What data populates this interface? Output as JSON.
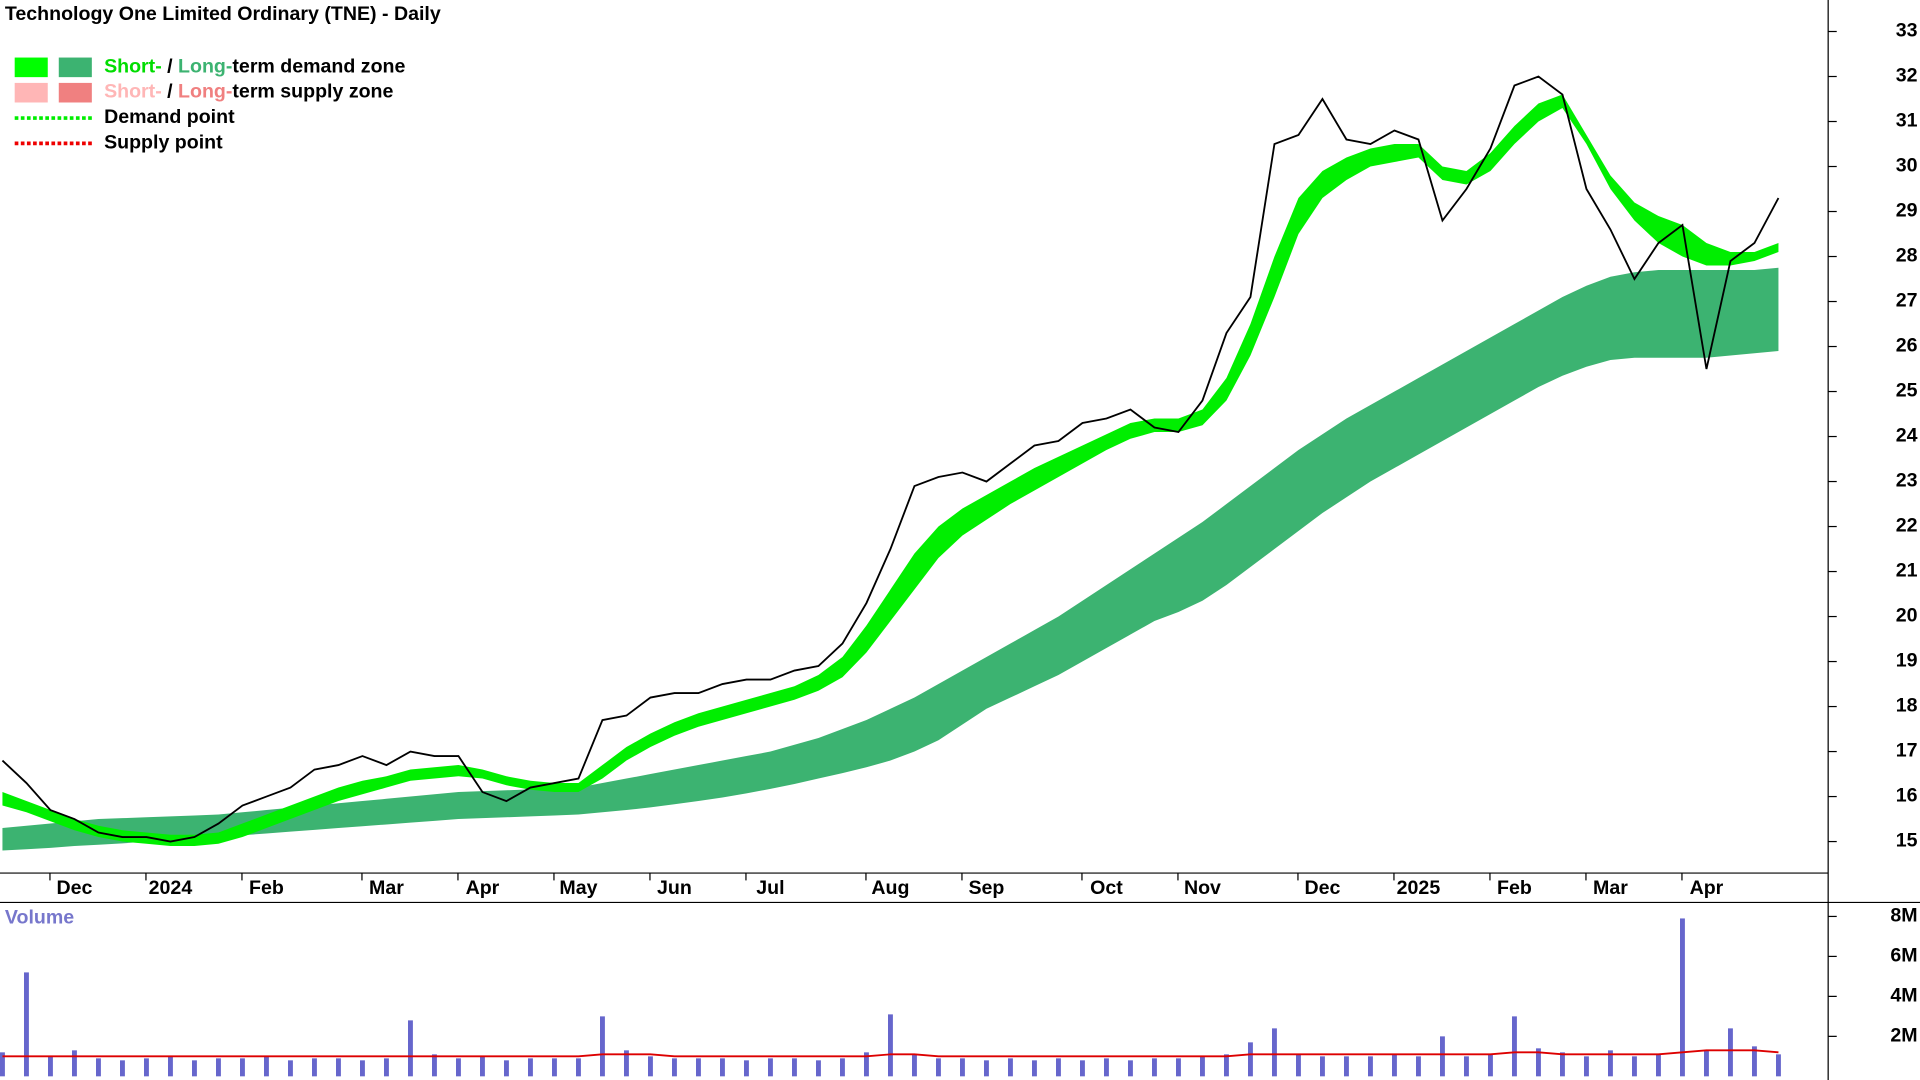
{
  "chart_data": [
    {
      "type": "line",
      "title": "Technology One Limited Ordinary (TNE) - Daily",
      "categories": [
        null,
        null,
        null,
        "Dec",
        null,
        null,
        null,
        "2024",
        null,
        null,
        null,
        "Feb",
        null,
        null,
        null,
        null,
        "Mar",
        null,
        null,
        null,
        "Apr",
        null,
        null,
        null,
        "May",
        null,
        null,
        null,
        "Jun",
        null,
        null,
        null,
        "Jul",
        null,
        null,
        null,
        null,
        "Aug",
        null,
        null,
        null,
        "Sep",
        null,
        null,
        null,
        null,
        "Oct",
        null,
        null,
        null,
        "Nov",
        null,
        null,
        null,
        null,
        "Dec",
        null,
        null,
        null,
        "2025",
        null,
        null,
        null,
        "Feb",
        null,
        null,
        null,
        "Mar",
        null,
        null,
        null,
        "Apr",
        null,
        null,
        null
      ],
      "series": [
        {
          "color": "#000000",
          "values": [
            16.8,
            16.3,
            15.7,
            15.5,
            15.2,
            15.1,
            15.1,
            15.0,
            15.1,
            15.4,
            15.8,
            16.0,
            16.2,
            16.6,
            16.7,
            16.9,
            16.7,
            17.0,
            16.9,
            16.9,
            16.1,
            15.9,
            16.2,
            16.3,
            16.4,
            17.7,
            17.8,
            18.2,
            18.3,
            18.3,
            18.5,
            18.6,
            18.6,
            18.8,
            18.9,
            19.4,
            20.3,
            21.5,
            22.9,
            23.1,
            23.2,
            23.0,
            23.4,
            23.8,
            23.9,
            24.3,
            24.4,
            24.6,
            24.2,
            24.1,
            24.8,
            26.3,
            27.1,
            30.5,
            30.7,
            31.5,
            30.6,
            30.5,
            30.8,
            30.6,
            28.8,
            29.5,
            30.4,
            31.8,
            32.0,
            31.6,
            29.5,
            28.6,
            27.5,
            28.3,
            28.7,
            25.5,
            27.9,
            28.3,
            29.3
          ]
        }
      ],
      "zones": [
        {
          "color": "#3cb371",
          "upper": [
            15.3,
            15.35,
            15.4,
            15.45,
            15.5,
            15.52,
            15.54,
            15.56,
            15.58,
            15.6,
            15.65,
            15.7,
            15.75,
            15.8,
            15.85,
            15.9,
            15.95,
            16.0,
            16.05,
            16.1,
            16.12,
            16.14,
            16.16,
            16.18,
            16.2,
            16.3,
            16.4,
            16.5,
            16.6,
            16.7,
            16.8,
            16.9,
            17.0,
            17.15,
            17.3,
            17.5,
            17.7,
            17.95,
            18.2,
            18.5,
            18.8,
            19.1,
            19.4,
            19.7,
            20.0,
            20.35,
            20.7,
            21.05,
            21.4,
            21.75,
            22.1,
            22.5,
            22.9,
            23.3,
            23.7,
            24.05,
            24.4,
            24.7,
            25.0,
            25.3,
            25.6,
            25.9,
            26.2,
            26.5,
            26.8,
            27.1,
            27.35,
            27.55,
            27.65,
            27.7,
            27.7,
            27.7,
            27.7,
            27.7,
            27.75
          ],
          "lower": [
            14.8,
            14.83,
            14.86,
            14.9,
            14.93,
            14.96,
            15.0,
            15.03,
            15.06,
            15.1,
            15.14,
            15.18,
            15.22,
            15.26,
            15.3,
            15.34,
            15.38,
            15.42,
            15.46,
            15.5,
            15.52,
            15.54,
            15.56,
            15.58,
            15.6,
            15.65,
            15.7,
            15.76,
            15.83,
            15.9,
            15.98,
            16.07,
            16.17,
            16.28,
            16.4,
            16.52,
            16.65,
            16.8,
            17.0,
            17.25,
            17.6,
            17.95,
            18.2,
            18.45,
            18.7,
            19.0,
            19.3,
            19.6,
            19.9,
            20.1,
            20.35,
            20.7,
            21.1,
            21.5,
            21.9,
            22.3,
            22.65,
            23.0,
            23.3,
            23.6,
            23.9,
            24.2,
            24.5,
            24.8,
            25.1,
            25.35,
            25.55,
            25.7,
            25.75,
            25.75,
            25.75,
            25.75,
            25.8,
            25.85,
            25.9
          ]
        },
        {
          "color": "#00ee00",
          "upper": [
            16.1,
            15.9,
            15.7,
            15.5,
            15.35,
            15.25,
            15.2,
            15.15,
            15.15,
            15.2,
            15.4,
            15.6,
            15.8,
            16.0,
            16.2,
            16.35,
            16.45,
            16.6,
            16.65,
            16.7,
            16.6,
            16.45,
            16.35,
            16.3,
            16.3,
            16.7,
            17.1,
            17.4,
            17.65,
            17.85,
            18.0,
            18.15,
            18.3,
            18.45,
            18.7,
            19.1,
            19.8,
            20.6,
            21.4,
            22.0,
            22.4,
            22.7,
            23.0,
            23.3,
            23.55,
            23.8,
            24.05,
            24.3,
            24.4,
            24.4,
            24.6,
            25.3,
            26.5,
            28.0,
            29.3,
            29.9,
            30.2,
            30.4,
            30.5,
            30.5,
            30.0,
            29.9,
            30.3,
            30.9,
            31.4,
            31.6,
            30.7,
            29.8,
            29.2,
            28.9,
            28.7,
            28.3,
            28.1,
            28.1,
            28.3
          ],
          "lower": [
            15.8,
            15.65,
            15.45,
            15.25,
            15.1,
            15.0,
            14.95,
            14.9,
            14.9,
            14.95,
            15.1,
            15.3,
            15.5,
            15.7,
            15.9,
            16.05,
            16.2,
            16.35,
            16.4,
            16.45,
            16.4,
            16.25,
            16.15,
            16.1,
            16.1,
            16.4,
            16.8,
            17.1,
            17.35,
            17.55,
            17.7,
            17.85,
            18.0,
            18.15,
            18.35,
            18.65,
            19.2,
            19.9,
            20.6,
            21.3,
            21.8,
            22.15,
            22.5,
            22.8,
            23.1,
            23.4,
            23.7,
            23.95,
            24.1,
            24.1,
            24.25,
            24.8,
            25.8,
            27.1,
            28.5,
            29.3,
            29.7,
            30.0,
            30.1,
            30.2,
            29.7,
            29.6,
            29.9,
            30.5,
            31.0,
            31.3,
            30.5,
            29.5,
            28.8,
            28.3,
            28.0,
            27.8,
            27.8,
            27.9,
            28.1
          ]
        }
      ],
      "ylim": [
        14.3,
        33.7
      ],
      "yticks": [
        15,
        16,
        17,
        18,
        19,
        20,
        21,
        22,
        23,
        24,
        25,
        26,
        27,
        28,
        29,
        30,
        31,
        32,
        33
      ],
      "legend": [
        {
          "swatches": [
            "#00ff00",
            "#3cb371"
          ],
          "parts": [
            "Short-",
            " / ",
            "Long-",
            "term demand zone"
          ],
          "part_colors": [
            "#00dd00",
            "#000000",
            "#3cb371",
            "#000000"
          ]
        },
        {
          "swatches": [
            "#ffb6b6",
            "#f08080"
          ],
          "parts": [
            "Short-",
            " / ",
            "Long-",
            "term supply zone"
          ],
          "part_colors": [
            "#ffb6b6",
            "#000000",
            "#f08080",
            "#000000"
          ]
        },
        {
          "line": "#00ee00",
          "parts": [
            "Demand point"
          ],
          "part_colors": [
            "#000000"
          ]
        },
        {
          "line": "#ee0000",
          "parts": [
            "Supply point"
          ],
          "part_colors": [
            "#000000"
          ]
        }
      ]
    },
    {
      "type": "bar",
      "title": "Volume",
      "color": "#6666cc",
      "values": [
        1.2,
        5.2,
        1.0,
        1.3,
        0.9,
        0.8,
        0.9,
        1.0,
        0.8,
        0.9,
        0.9,
        1.0,
        0.8,
        0.9,
        0.9,
        0.8,
        0.9,
        2.8,
        1.1,
        0.9,
        1.0,
        0.8,
        0.9,
        0.9,
        0.9,
        3.0,
        1.3,
        1.0,
        0.9,
        0.9,
        0.9,
        0.8,
        0.9,
        0.9,
        0.8,
        0.9,
        1.2,
        3.1,
        1.1,
        0.9,
        0.9,
        0.8,
        0.9,
        0.8,
        0.9,
        0.8,
        0.9,
        0.8,
        0.9,
        0.9,
        1.0,
        1.1,
        1.7,
        2.4,
        1.1,
        1.0,
        1.0,
        1.0,
        1.1,
        1.0,
        2.0,
        1.0,
        1.1,
        3.0,
        1.4,
        1.2,
        1.0,
        1.3,
        1.0,
        1.1,
        7.9,
        1.3,
        2.4,
        1.5,
        1.1
      ],
      "average": {
        "color": "#dd0000",
        "values": [
          1.0,
          1.0,
          1.0,
          1.0,
          1.0,
          1.0,
          1.0,
          1.0,
          1.0,
          1.0,
          1.0,
          1.0,
          1.0,
          1.0,
          1.0,
          1.0,
          1.0,
          1.0,
          1.0,
          1.0,
          1.0,
          1.0,
          1.0,
          1.0,
          1.0,
          1.1,
          1.1,
          1.1,
          1.0,
          1.0,
          1.0,
          1.0,
          1.0,
          1.0,
          1.0,
          1.0,
          1.0,
          1.1,
          1.1,
          1.0,
          1.0,
          1.0,
          1.0,
          1.0,
          1.0,
          1.0,
          1.0,
          1.0,
          1.0,
          1.0,
          1.0,
          1.0,
          1.1,
          1.1,
          1.1,
          1.1,
          1.1,
          1.1,
          1.1,
          1.1,
          1.1,
          1.1,
          1.1,
          1.2,
          1.2,
          1.1,
          1.1,
          1.1,
          1.1,
          1.1,
          1.2,
          1.3,
          1.3,
          1.3,
          1.2
        ]
      },
      "ylim": [
        0,
        8.7
      ],
      "yticks": [
        {
          "value": 2,
          "label": "2M"
        },
        {
          "value": 4,
          "label": "4M"
        },
        {
          "value": 6,
          "label": "6M"
        },
        {
          "value": 8,
          "label": "8M"
        }
      ]
    }
  ]
}
